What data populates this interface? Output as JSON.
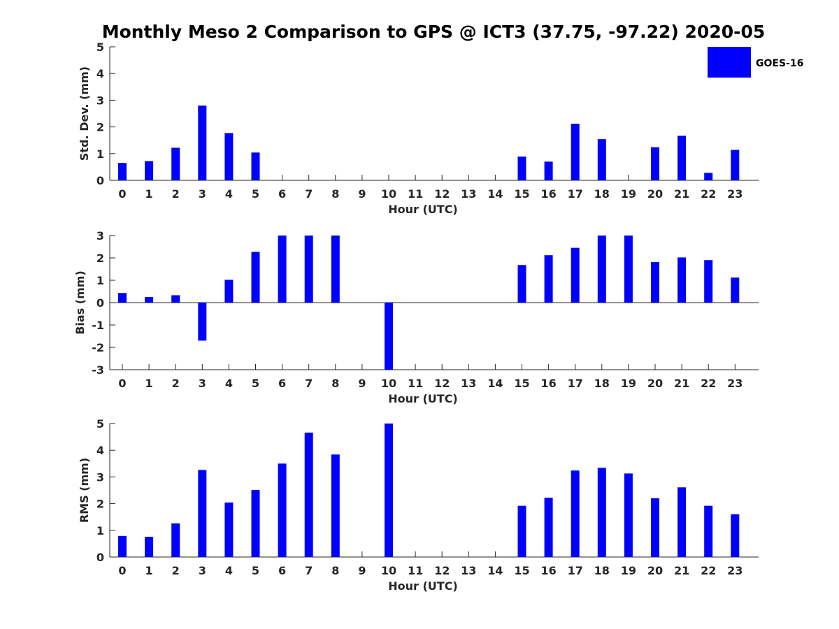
{
  "title": "Monthly Meso 2 Comparison to GPS @ ICT3 (37.75, -97.22) 2020-05",
  "legend": {
    "label": "GOES-16",
    "color": "#0000ff",
    "placement": "top-right"
  },
  "chart_data": [
    {
      "type": "bar",
      "xlabel": "Hour (UTC)",
      "ylabel": "Std. Dev. (mm)",
      "ylim": [
        0,
        5
      ],
      "yticks": [
        0,
        1,
        2,
        3,
        4,
        5
      ],
      "categories": [
        "0",
        "1",
        "2",
        "3",
        "4",
        "5",
        "6",
        "7",
        "8",
        "9",
        "10",
        "11",
        "12",
        "13",
        "14",
        "15",
        "16",
        "17",
        "18",
        "19",
        "20",
        "21",
        "22",
        "23"
      ],
      "series": [
        {
          "name": "GOES-16",
          "color": "#0000ff",
          "values": [
            0.65,
            0.72,
            1.22,
            2.8,
            1.77,
            1.04,
            null,
            null,
            null,
            null,
            null,
            null,
            null,
            null,
            null,
            0.89,
            0.7,
            2.12,
            1.54,
            null,
            1.24,
            1.67,
            0.28,
            1.14
          ]
        }
      ]
    },
    {
      "type": "bar",
      "xlabel": "Hour (UTC)",
      "ylabel": "Bias (mm)",
      "ylim": [
        -3,
        3
      ],
      "yticks": [
        -3,
        -2,
        -1,
        0,
        1,
        2,
        3
      ],
      "categories": [
        "0",
        "1",
        "2",
        "3",
        "4",
        "5",
        "6",
        "7",
        "8",
        "9",
        "10",
        "11",
        "12",
        "13",
        "14",
        "15",
        "16",
        "17",
        "18",
        "19",
        "20",
        "21",
        "22",
        "23"
      ],
      "series": [
        {
          "name": "GOES-16",
          "color": "#0000ff",
          "values": [
            0.43,
            0.25,
            0.33,
            -1.7,
            1.02,
            2.27,
            3.0,
            3.0,
            3.0,
            null,
            -3.0,
            null,
            null,
            null,
            null,
            1.68,
            2.12,
            2.45,
            3.0,
            3.0,
            1.81,
            2.02,
            1.9,
            1.12
          ]
        }
      ]
    },
    {
      "type": "bar",
      "xlabel": "Hour (UTC)",
      "ylabel": "RMS (mm)",
      "ylim": [
        0,
        5
      ],
      "yticks": [
        0,
        1,
        2,
        3,
        4,
        5
      ],
      "categories": [
        "0",
        "1",
        "2",
        "3",
        "4",
        "5",
        "6",
        "7",
        "8",
        "9",
        "10",
        "11",
        "12",
        "13",
        "14",
        "15",
        "16",
        "17",
        "18",
        "19",
        "20",
        "21",
        "22",
        "23"
      ],
      "series": [
        {
          "name": "GOES-16",
          "color": "#0000ff",
          "values": [
            0.79,
            0.76,
            1.26,
            3.26,
            2.04,
            2.51,
            3.5,
            4.66,
            3.84,
            null,
            5.0,
            null,
            null,
            null,
            null,
            1.92,
            2.22,
            3.24,
            3.34,
            3.13,
            2.2,
            2.61,
            1.92,
            1.6
          ]
        }
      ]
    }
  ]
}
